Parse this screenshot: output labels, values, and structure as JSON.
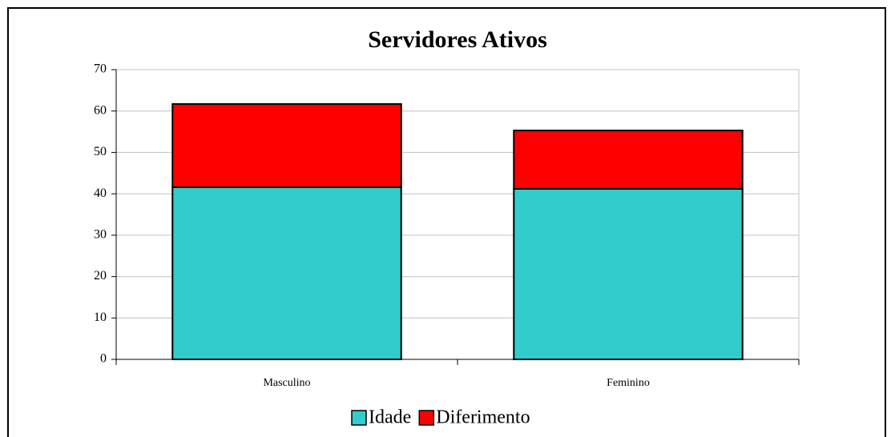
{
  "chart_data": {
    "type": "stacked_bar",
    "title": "Servidores Ativos",
    "categories": [
      "Masculino",
      "Feminino"
    ],
    "series": [
      {
        "name": "Idade",
        "color": "#33cccc",
        "values": [
          41.6,
          41.2
        ]
      },
      {
        "name": "Diferimento",
        "color": "#ff0000",
        "values": [
          20.1,
          14.1
        ]
      }
    ],
    "ylim": [
      0,
      70
    ],
    "yticks": [
      0,
      10,
      20,
      30,
      40,
      50,
      60,
      70
    ],
    "grid": true,
    "legend": "bottom"
  }
}
